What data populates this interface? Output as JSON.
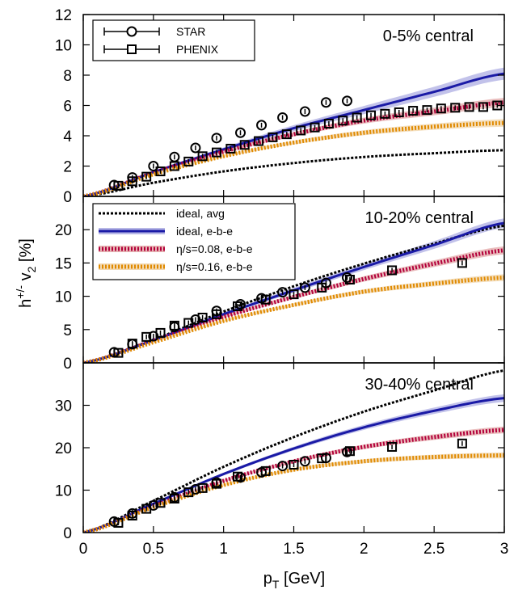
{
  "colors": {
    "ideal_avg": "#000000",
    "ideal_ebe": "#1a1aa6",
    "eta008": "#b3003b",
    "eta016": "#e08a00",
    "band_ideal": "#b7b7e6",
    "band_eta008": "#e6b3b3",
    "band_eta016": "#f2d9b3"
  },
  "x_axis": {
    "label_main": "p",
    "label_sub": "T",
    "label_unit": " [GeV]",
    "range": [
      0,
      3
    ],
    "ticks": [
      "0",
      "0.5",
      "1",
      "1.5",
      "2",
      "2.5",
      "3"
    ]
  },
  "y_axis": {
    "label_main": "h",
    "label_sup": "+/-",
    "label_var": " v",
    "label_sub": "2",
    "label_unit": " [%]"
  },
  "chart_data": [
    {
      "type": "line",
      "title": "0-5% central",
      "ylim": [
        0,
        12
      ],
      "yticks": [
        "0",
        "2",
        "4",
        "6",
        "8",
        "10",
        "12"
      ],
      "legend": {
        "placement": "top-left",
        "entries": [
          "STAR",
          "PHENIX"
        ]
      },
      "series": [
        {
          "name": "ideal, avg",
          "style": "dotted",
          "color": "#000000",
          "x": [
            0,
            0.5,
            1,
            1.5,
            2,
            2.5,
            3
          ],
          "y": [
            0,
            0.9,
            1.65,
            2.2,
            2.6,
            2.85,
            3.05
          ]
        },
        {
          "name": "ideal, e-b-e",
          "style": "solid",
          "color": "#1a1aa6",
          "band": 0.4,
          "x": [
            0,
            0.5,
            1,
            1.5,
            2,
            2.5,
            3
          ],
          "y": [
            0,
            1.6,
            3.1,
            4.5,
            5.7,
            6.9,
            8.1
          ]
        },
        {
          "name": "η/s=0.08, e-b-e",
          "style": "dotted-thick",
          "color": "#b3003b",
          "band": 0.3,
          "x": [
            0,
            0.5,
            1,
            1.5,
            2,
            2.5,
            3
          ],
          "y": [
            0,
            1.55,
            2.95,
            4.1,
            5.0,
            5.6,
            6.2
          ]
        },
        {
          "name": "η/s=0.16, e-b-e",
          "style": "dotted-thick",
          "color": "#e08a00",
          "band": 0.25,
          "x": [
            0,
            0.5,
            1,
            1.5,
            2,
            2.5,
            3
          ],
          "y": [
            0,
            1.45,
            2.65,
            3.55,
            4.2,
            4.6,
            4.85
          ]
        }
      ],
      "points": [
        {
          "name": "STAR",
          "marker": "circle",
          "x": [
            0.22,
            0.35,
            0.5,
            0.65,
            0.8,
            0.95,
            1.12,
            1.27,
            1.42,
            1.58,
            1.73,
            1.88
          ],
          "y": [
            0.75,
            1.25,
            2.0,
            2.6,
            3.2,
            3.85,
            4.2,
            4.7,
            5.2,
            5.6,
            6.2,
            6.3
          ]
        },
        {
          "name": "PHENIX",
          "marker": "square",
          "x": [
            0.25,
            0.35,
            0.45,
            0.55,
            0.65,
            0.75,
            0.85,
            0.95,
            1.05,
            1.15,
            1.25,
            1.35,
            1.45,
            1.55,
            1.65,
            1.75,
            1.85,
            1.95,
            2.05,
            2.15,
            2.25,
            2.35,
            2.45,
            2.55,
            2.65,
            2.75,
            2.85,
            2.95
          ],
          "y": [
            0.7,
            1.0,
            1.3,
            1.65,
            2.0,
            2.3,
            2.65,
            2.9,
            3.15,
            3.4,
            3.65,
            3.9,
            4.1,
            4.35,
            4.55,
            4.8,
            5.0,
            5.2,
            5.35,
            5.45,
            5.55,
            5.65,
            5.7,
            5.8,
            5.85,
            5.9,
            5.9,
            6.0
          ]
        }
      ]
    },
    {
      "type": "line",
      "title": "10-20% central",
      "ylim": [
        0,
        25
      ],
      "yticks": [
        "0",
        "5",
        "10",
        "15",
        "20",
        "25"
      ],
      "legend": {
        "placement": "top-left",
        "entries": [
          "ideal, avg",
          "ideal, e-b-e",
          "η/s=0.08, e-b-e",
          "η/s=0.16, e-b-e"
        ]
      },
      "series": [
        {
          "name": "ideal, avg",
          "style": "dotted",
          "color": "#000000",
          "x": [
            0,
            0.5,
            1,
            1.5,
            2,
            2.5,
            3
          ],
          "y": [
            0,
            3.5,
            7.7,
            11.5,
            14.9,
            17.9,
            20.6
          ]
        },
        {
          "name": "ideal, e-b-e",
          "style": "solid",
          "color": "#1a1aa6",
          "band": 0.7,
          "x": [
            0,
            0.5,
            1,
            1.5,
            2,
            2.5,
            3
          ],
          "y": [
            0,
            3.4,
            7.3,
            10.9,
            14.4,
            17.7,
            21.0
          ]
        },
        {
          "name": "η/s=0.08, e-b-e",
          "style": "dotted-thick",
          "color": "#b3003b",
          "band": 0.6,
          "x": [
            0,
            0.5,
            1,
            1.5,
            2,
            2.5,
            3
          ],
          "y": [
            0,
            3.3,
            6.9,
            9.9,
            12.6,
            14.9,
            16.9
          ]
        },
        {
          "name": "η/s=0.16, e-b-e",
          "style": "dotted-thick",
          "color": "#e08a00",
          "band": 0.5,
          "x": [
            0,
            0.5,
            1,
            1.5,
            2,
            2.5,
            3
          ],
          "y": [
            0,
            3.1,
            6.3,
            8.7,
            10.7,
            11.9,
            12.8
          ]
        }
      ],
      "points": [
        {
          "name": "STAR",
          "marker": "circle",
          "x": [
            0.22,
            0.35,
            0.5,
            0.65,
            0.8,
            0.95,
            1.12,
            1.27,
            1.42,
            1.58,
            1.73,
            1.88
          ],
          "y": [
            1.6,
            2.8,
            4.0,
            5.4,
            6.5,
            7.8,
            8.8,
            9.7,
            10.6,
            11.3,
            12.0,
            12.8
          ]
        },
        {
          "name": "PHENIX",
          "marker": "square",
          "x": [
            0.25,
            0.35,
            0.45,
            0.55,
            0.65,
            0.75,
            0.85,
            0.95,
            1.1,
            1.3,
            1.5,
            1.7,
            1.9,
            2.2,
            2.7
          ],
          "y": [
            1.5,
            2.9,
            3.9,
            4.5,
            5.6,
            6.0,
            6.8,
            7.3,
            8.5,
            9.5,
            10.3,
            11.3,
            12.5,
            13.9,
            15.0
          ]
        }
      ]
    },
    {
      "type": "line",
      "title": "30-40% central",
      "ylim": [
        0,
        40
      ],
      "yticks": [
        "0",
        "10",
        "20",
        "30",
        "40"
      ],
      "series": [
        {
          "name": "ideal, avg",
          "style": "dotted",
          "color": "#000000",
          "x": [
            0,
            0.5,
            1,
            1.5,
            2,
            2.5,
            3
          ],
          "y": [
            0,
            7.5,
            15.5,
            22.5,
            28.5,
            33.5,
            38.2
          ]
        },
        {
          "name": "ideal, e-b-e",
          "style": "solid",
          "color": "#1a1aa6",
          "band": 0.9,
          "x": [
            0,
            0.5,
            1,
            1.5,
            2,
            2.5,
            3
          ],
          "y": [
            0,
            6.8,
            13.8,
            19.8,
            24.8,
            28.7,
            31.7
          ]
        },
        {
          "name": "η/s=0.08, e-b-e",
          "style": "dotted-thick",
          "color": "#b3003b",
          "band": 0.8,
          "x": [
            0,
            0.5,
            1,
            1.5,
            2,
            2.5,
            3
          ],
          "y": [
            0,
            6.2,
            12.2,
            16.8,
            20.2,
            22.5,
            24.2
          ]
        },
        {
          "name": "η/s=0.16, e-b-e",
          "style": "dotted-thick",
          "color": "#e08a00",
          "band": 0.7,
          "x": [
            0,
            0.5,
            1,
            1.5,
            2,
            2.5,
            3
          ],
          "y": [
            0,
            6.0,
            11.2,
            14.8,
            16.8,
            17.8,
            18.2
          ]
        }
      ],
      "points": [
        {
          "name": "STAR",
          "marker": "circle",
          "x": [
            0.22,
            0.35,
            0.5,
            0.65,
            0.8,
            0.95,
            1.12,
            1.27,
            1.42,
            1.58,
            1.73,
            1.88
          ],
          "y": [
            2.6,
            4.5,
            6.4,
            8.3,
            10.2,
            11.8,
            13.0,
            14.2,
            15.7,
            16.8,
            17.6,
            19.0
          ]
        },
        {
          "name": "PHENIX",
          "marker": "square",
          "x": [
            0.25,
            0.35,
            0.45,
            0.55,
            0.65,
            0.75,
            0.85,
            0.95,
            1.1,
            1.3,
            1.5,
            1.7,
            1.9,
            2.2,
            2.7
          ],
          "y": [
            2.3,
            4.0,
            5.6,
            7.0,
            8.0,
            9.5,
            10.5,
            11.5,
            13.2,
            14.5,
            16.0,
            17.5,
            19.2,
            20.2,
            21.0
          ]
        }
      ]
    }
  ]
}
